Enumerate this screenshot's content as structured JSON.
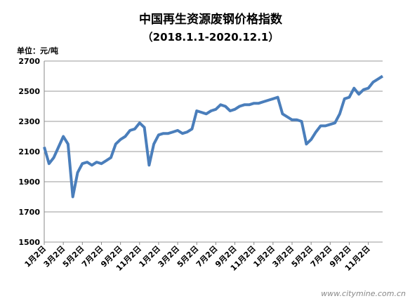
{
  "chart_data": {
    "type": "line",
    "title": "中国再生资源废钢价格指数",
    "subtitle": "（2018.1.1-2020.12.1）",
    "unit_label": "单位：元/吨",
    "watermark": "www.citymine.com.cn",
    "categories": [
      "1月2日",
      null,
      null,
      null,
      "3月2日",
      null,
      null,
      null,
      "5月2日",
      null,
      null,
      null,
      "7月2日",
      null,
      null,
      null,
      "9月2日",
      null,
      null,
      null,
      "11月2日",
      null,
      null,
      null,
      "1月2日",
      null,
      null,
      null,
      "3月2日",
      null,
      null,
      null,
      "5月2日",
      null,
      null,
      null,
      "7月2日",
      null,
      null,
      null,
      "9月2日",
      null,
      null,
      null,
      "11月2日",
      null,
      null,
      null,
      "1月2日",
      null,
      null,
      null,
      "3月2日",
      null,
      null,
      null,
      "5月2日",
      null,
      null,
      null,
      "7月2日",
      null,
      null,
      null,
      "9月2日",
      null,
      null,
      null,
      "11月2日",
      null,
      null,
      null
    ],
    "series": [
      {
        "name": "废钢价格指数",
        "color": "#4a7ebb",
        "values": [
          2130,
          2020,
          2060,
          2130,
          2200,
          2150,
          1800,
          1960,
          2020,
          2030,
          2010,
          2030,
          2020,
          2040,
          2060,
          2150,
          2180,
          2200,
          2240,
          2250,
          2290,
          2260,
          2010,
          2150,
          2210,
          2220,
          2220,
          2230,
          2240,
          2220,
          2230,
          2250,
          2370,
          2360,
          2350,
          2370,
          2380,
          2410,
          2400,
          2370,
          2380,
          2400,
          2410,
          2410,
          2420,
          2420,
          2430,
          2440,
          2450,
          2460,
          2350,
          2330,
          2310,
          2310,
          2300,
          2150,
          2180,
          2230,
          2270,
          2270,
          2280,
          2290,
          2350,
          2450,
          2460,
          2520,
          2480,
          2510,
          2520,
          2560,
          2580,
          2600
        ]
      }
    ],
    "ylim": [
      1500,
      2700
    ],
    "yticks": [
      1500,
      1700,
      1900,
      2100,
      2300,
      2500,
      2700
    ],
    "grid": true
  }
}
